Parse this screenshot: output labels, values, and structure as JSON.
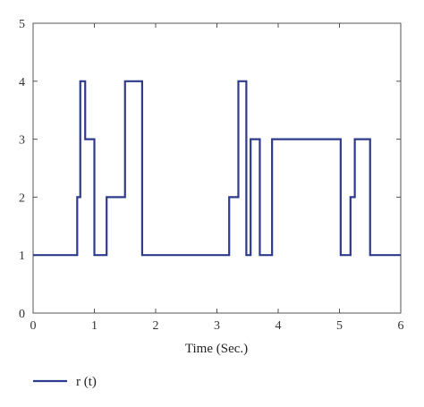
{
  "colors": {
    "series": "#2e3a8c",
    "axis": "#555555",
    "background": "#ffffff"
  },
  "chart_data": {
    "type": "line",
    "title": "",
    "xlabel": "Time (Sec.)",
    "ylabel": "",
    "xlim": [
      0,
      6
    ],
    "ylim": [
      0,
      5
    ],
    "xticks": [
      "0",
      "1",
      "2",
      "3",
      "4",
      "5",
      "6"
    ],
    "yticks": [
      "0",
      "1",
      "2",
      "3",
      "4",
      "5"
    ],
    "grid": false,
    "legend_position": "bottom-left",
    "step": true,
    "series": [
      {
        "name": "r (t)",
        "x": [
          0,
          0.72,
          0.77,
          0.85,
          1.0,
          1.2,
          1.5,
          1.78,
          3.2,
          3.35,
          3.48,
          3.55,
          3.7,
          3.9,
          5.02,
          5.18,
          5.25,
          5.5,
          6.0
        ],
        "y": [
          1,
          2,
          4,
          3,
          1,
          2,
          4,
          1,
          2,
          4,
          1,
          3,
          1,
          3,
          1,
          2,
          3,
          1,
          1
        ]
      }
    ]
  }
}
